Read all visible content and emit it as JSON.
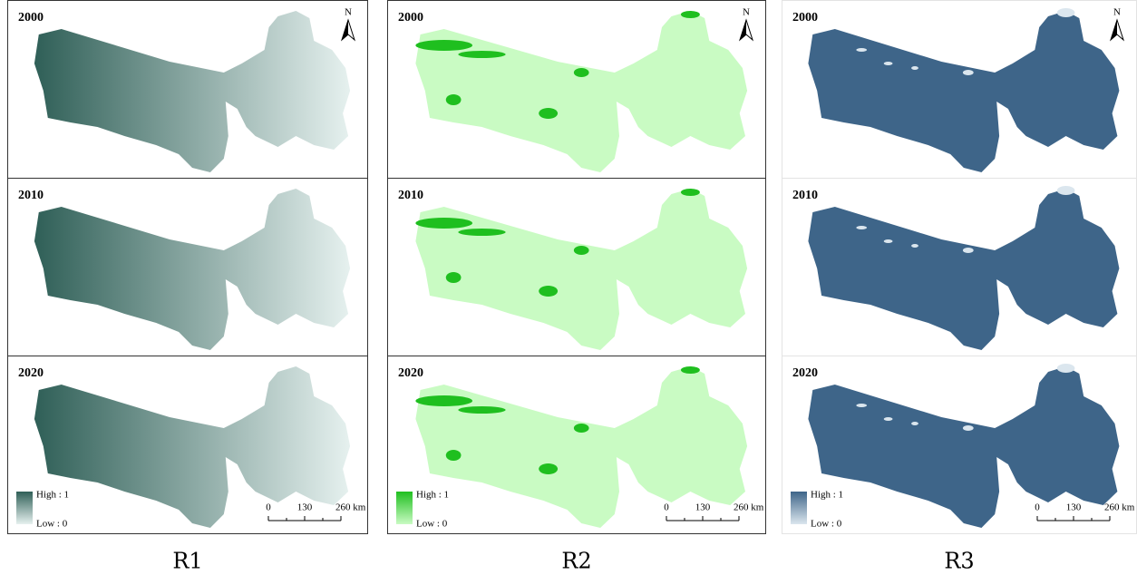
{
  "columns": [
    {
      "label": "R1",
      "colors": {
        "high": "#2f5f57",
        "low": "#e6f1ef"
      },
      "panels": [
        {
          "year": "2000"
        },
        {
          "year": "2010"
        },
        {
          "year": "2020"
        }
      ],
      "north": "N",
      "legend": {
        "high": "High : 1",
        "low": "Low : 0"
      },
      "scale": [
        "0",
        "130",
        "260 km"
      ]
    },
    {
      "label": "R2",
      "colors": {
        "high": "#1fbf1f",
        "low": "#c9fbc3"
      },
      "panels": [
        {
          "year": "2000"
        },
        {
          "year": "2010"
        },
        {
          "year": "2020"
        }
      ],
      "north": "N",
      "legend": {
        "high": "High : 1",
        "low": "Low : 0"
      },
      "scale": [
        "0",
        "130",
        "260 km"
      ]
    },
    {
      "label": "R3",
      "colors": {
        "high": "#3e6589",
        "low": "#dbe6ee"
      },
      "panels": [
        {
          "year": "2000"
        },
        {
          "year": "2010"
        },
        {
          "year": "2020"
        }
      ],
      "north": "N",
      "legend": {
        "high": "High : 1",
        "low": "Low : 0"
      },
      "scale": [
        "0",
        "130",
        "260 km"
      ]
    }
  ]
}
